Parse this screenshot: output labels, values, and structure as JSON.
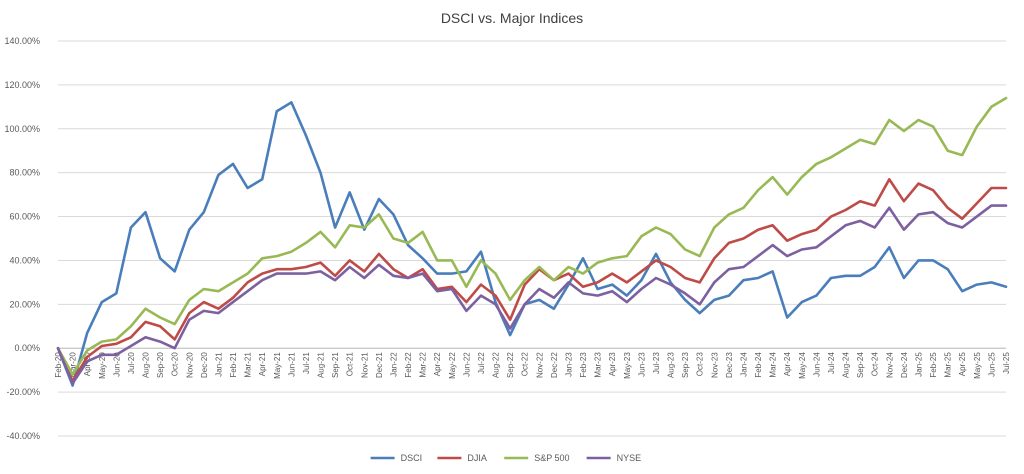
{
  "chart_data": {
    "type": "line",
    "title": "DSCI vs. Major Indices",
    "xlabel": "",
    "ylabel": "",
    "ylim": [
      -40,
      140
    ],
    "ytick_step": 20,
    "y_tick_labels": [
      "140.00%",
      "120.00%",
      "100.00%",
      "80.00%",
      "60.00%",
      "40.00%",
      "20.00%",
      "0.00%",
      "-20.00%",
      "-40.00%"
    ],
    "grid": true,
    "legend_position": "bottom",
    "categories": [
      "Feb-20",
      "Mar-20",
      "Apr-20",
      "May-20",
      "Jun-20",
      "Jul-20",
      "Aug-20",
      "Sep-20",
      "Oct-20",
      "Nov-20",
      "Dec-20",
      "Jan-21",
      "Feb-21",
      "Mar-21",
      "Apr-21",
      "May-21",
      "Jun-21",
      "Jul-21",
      "Aug-21",
      "Sep-21",
      "Oct-21",
      "Nov-21",
      "Dec-21",
      "Jan-22",
      "Feb-22",
      "Mar-22",
      "Apr-22",
      "May-22",
      "Jun-22",
      "Jul-22",
      "Aug-22",
      "Sep-22",
      "Oct-22",
      "Nov-22",
      "Dec-22",
      "Jan-23",
      "Feb-23",
      "Mar-23",
      "Apr-23",
      "May-23",
      "Jun-23",
      "Jul-23",
      "Aug-23",
      "Sep-23",
      "Oct-23",
      "Nov-23",
      "Dec-23",
      "Jan-24",
      "Feb-24",
      "Mar-24",
      "Apr-24",
      "May-24",
      "Jun-24",
      "Jul-24",
      "Aug-24",
      "Sep-24",
      "Oct-24",
      "Nov-24",
      "Dec-24",
      "Jan-25",
      "Feb-25",
      "Mar-25",
      "Apr-25",
      "May-25",
      "Jun-25",
      "Jul-25"
    ],
    "series": [
      {
        "name": "DSCI",
        "color": "#4a7ebb",
        "values": [
          0,
          -17,
          7,
          21,
          25,
          55,
          62,
          41,
          35,
          54,
          62,
          79,
          84,
          73,
          77,
          108,
          112,
          97,
          80,
          55,
          71,
          54,
          68,
          61,
          47,
          41,
          34,
          34,
          35,
          44,
          21,
          6,
          20,
          22,
          18,
          29,
          41,
          27,
          29,
          24,
          31,
          43,
          30,
          22,
          16,
          22,
          24,
          31,
          32,
          35,
          14,
          21,
          24,
          32,
          33,
          33,
          37,
          46,
          32,
          40,
          40,
          36,
          26,
          29,
          30,
          28
        ]
      },
      {
        "name": "DJIA",
        "color": "#be4b48",
        "values": [
          0,
          -15,
          -4,
          1,
          2,
          5,
          12,
          10,
          4,
          16,
          21,
          18,
          23,
          30,
          34,
          36,
          36,
          37,
          39,
          33,
          40,
          35,
          43,
          36,
          32,
          36,
          27,
          28,
          21,
          29,
          24,
          13,
          29,
          36,
          31,
          34,
          28,
          30,
          34,
          30,
          35,
          40,
          37,
          32,
          30,
          41,
          48,
          50,
          54,
          56,
          49,
          52,
          54,
          60,
          63,
          67,
          65,
          77,
          67,
          75,
          72,
          64,
          59,
          66,
          73,
          73
        ]
      },
      {
        "name": "S&P 500",
        "color": "#98b954",
        "values": [
          0,
          -12,
          -1,
          3,
          4,
          10,
          18,
          14,
          11,
          22,
          27,
          26,
          30,
          34,
          41,
          42,
          44,
          48,
          53,
          46,
          56,
          55,
          61,
          50,
          48,
          53,
          40,
          40,
          28,
          40,
          34,
          22,
          31,
          37,
          31,
          37,
          34,
          39,
          41,
          42,
          51,
          55,
          52,
          45,
          42,
          55,
          61,
          64,
          72,
          78,
          70,
          78,
          84,
          87,
          91,
          95,
          93,
          104,
          99,
          104,
          101,
          90,
          88,
          101,
          110,
          114
        ]
      },
      {
        "name": "NYSE",
        "color": "#7d60a0",
        "values": [
          0,
          -16,
          -6,
          -3,
          -3,
          1,
          5,
          3,
          0,
          13,
          17,
          16,
          21,
          26,
          31,
          34,
          34,
          34,
          35,
          31,
          37,
          32,
          38,
          33,
          32,
          34,
          26,
          27,
          17,
          24,
          20,
          9,
          20,
          27,
          23,
          30,
          25,
          24,
          26,
          21,
          27,
          32,
          29,
          25,
          20,
          30,
          36,
          37,
          42,
          47,
          42,
          45,
          46,
          51,
          56,
          58,
          55,
          64,
          54,
          61,
          62,
          57,
          55,
          60,
          65,
          65
        ]
      }
    ]
  }
}
